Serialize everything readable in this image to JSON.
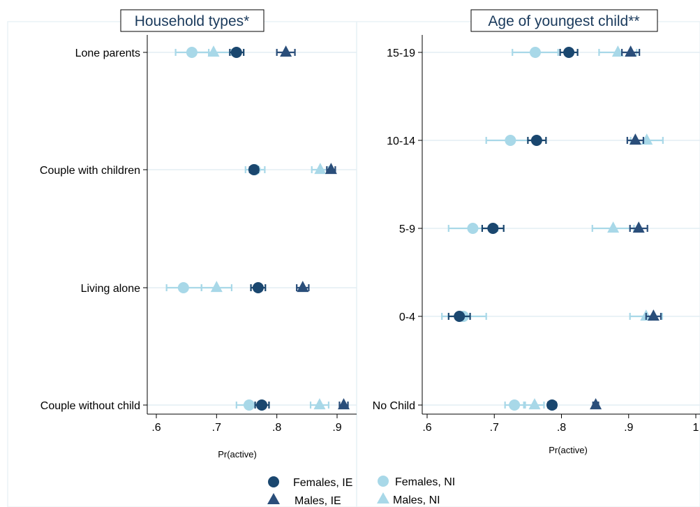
{
  "colors": {
    "females_ie": "#1a476f",
    "males_ie": "#2a4e7a",
    "females_ni": "#a8d8e8",
    "males_ni": "#a8d8e8",
    "grid": "#e4eef4",
    "panel_border": "#eaf2f6"
  },
  "legend": [
    {
      "label": "Females, IE",
      "marker": "circle",
      "color": "#1a476f"
    },
    {
      "label": "Females, NI",
      "marker": "circle",
      "color": "#a8d8e8"
    },
    {
      "label": "Males, IE",
      "marker": "triangle",
      "color": "#2a4e7a"
    },
    {
      "label": "Males, NI",
      "marker": "triangle",
      "color": "#a8d8e8"
    }
  ],
  "chart_data": [
    {
      "type": "scatter",
      "title": "Household types*",
      "xlabel": "Pr(active)",
      "ylabel": "",
      "xlim": [
        0.58,
        0.93
      ],
      "xticks": [
        0.6,
        0.7,
        0.8,
        0.9
      ],
      "xtick_labels": [
        ".6",
        ".7",
        ".8",
        ".9"
      ],
      "categories": [
        "Lone parents",
        "Couple with children",
        "Living alone",
        "Couple without child"
      ],
      "grid": true,
      "legend_position": "bottom",
      "series": [
        {
          "name": "Females, IE",
          "marker": "circle",
          "values": [
            0.733,
            0.762,
            0.769,
            0.775
          ],
          "lower": [
            0.722,
            0.755,
            0.757,
            0.764
          ],
          "upper": [
            0.745,
            0.769,
            0.781,
            0.787
          ]
        },
        {
          "name": "Females, NI",
          "marker": "circle",
          "values": [
            0.659,
            0.764,
            0.645,
            0.754
          ],
          "lower": [
            0.632,
            0.748,
            0.617,
            0.733
          ],
          "upper": [
            0.687,
            0.78,
            0.675,
            0.775
          ]
        },
        {
          "name": "Males, IE",
          "marker": "triangle",
          "values": [
            0.815,
            0.89,
            0.843,
            0.911
          ],
          "lower": [
            0.8,
            0.883,
            0.833,
            0.904
          ],
          "upper": [
            0.83,
            0.897,
            0.853,
            0.918
          ]
        },
        {
          "name": "Males, NI",
          "marker": "triangle",
          "values": [
            0.695,
            0.872,
            0.7,
            0.871
          ],
          "lower": [
            0.665,
            0.858,
            0.675,
            0.856
          ],
          "upper": [
            0.725,
            0.886,
            0.725,
            0.886
          ]
        }
      ]
    },
    {
      "type": "scatter",
      "title": "Age of youngest child**",
      "xlabel": "Pr(active)",
      "ylabel": "",
      "xlim": [
        0.585,
        1.0
      ],
      "xticks": [
        0.6,
        0.7,
        0.8,
        0.9,
        1.0
      ],
      "xtick_labels": [
        ".6",
        ".7",
        ".8",
        ".9",
        "1"
      ],
      "categories": [
        "15-19",
        "10-14",
        "5-9",
        "0-4",
        "No Child"
      ],
      "grid": true,
      "legend_position": "bottom",
      "series": [
        {
          "name": "Females, IE",
          "marker": "circle",
          "values": [
            0.811,
            0.763,
            0.698,
            0.648,
            0.786
          ],
          "lower": [
            0.798,
            0.75,
            0.682,
            0.632,
            0.78
          ],
          "upper": [
            0.824,
            0.777,
            0.714,
            0.664,
            0.792
          ]
        },
        {
          "name": "Females, NI",
          "marker": "circle",
          "values": [
            0.761,
            0.724,
            0.668,
            0.654,
            0.73
          ],
          "lower": [
            0.727,
            0.688,
            0.632,
            0.622,
            0.716
          ],
          "upper": [
            0.795,
            0.76,
            0.705,
            0.688,
            0.744
          ]
        },
        {
          "name": "Males, IE",
          "marker": "triangle",
          "values": [
            0.903,
            0.91,
            0.915,
            0.937,
            0.851
          ],
          "lower": [
            0.89,
            0.898,
            0.902,
            0.926,
            0.847
          ],
          "upper": [
            0.916,
            0.922,
            0.928,
            0.948,
            0.855
          ]
        },
        {
          "name": "Males, NI",
          "marker": "triangle",
          "values": [
            0.884,
            0.927,
            0.877,
            0.926,
            0.76
          ],
          "lower": [
            0.856,
            0.903,
            0.846,
            0.902,
            0.746
          ],
          "upper": [
            0.912,
            0.951,
            0.908,
            0.95,
            0.774
          ]
        }
      ]
    }
  ]
}
